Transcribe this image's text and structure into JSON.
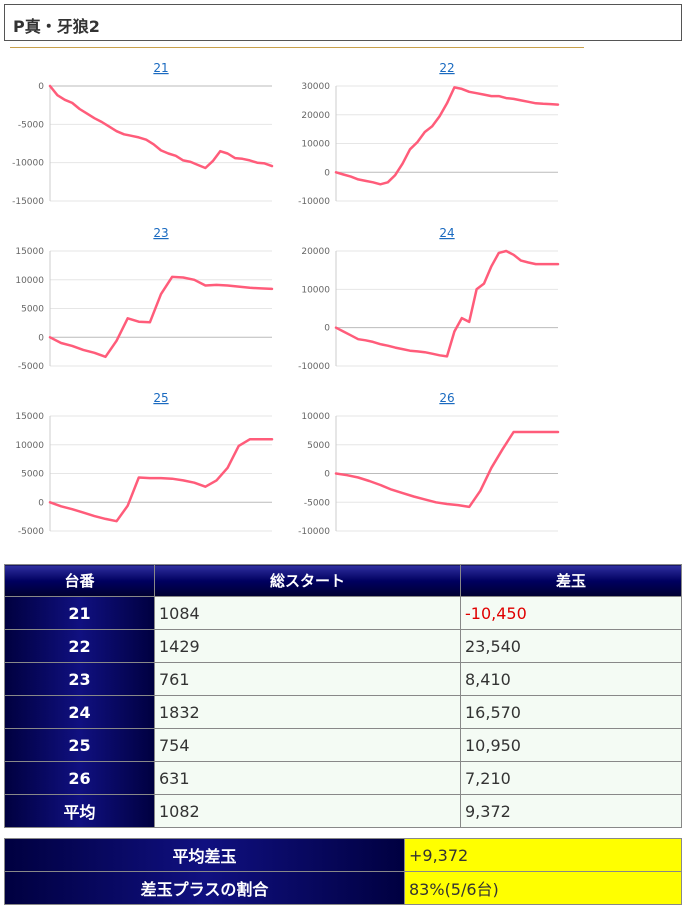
{
  "page": {
    "title": "P真・牙狼2"
  },
  "chart_data": [
    {
      "type": "line",
      "title": "21",
      "yticks": [
        0,
        -5000,
        -10000,
        -15000
      ],
      "ylim": [
        -15000,
        0
      ],
      "x": [
        0,
        1,
        2,
        3,
        4,
        5,
        6,
        7,
        8,
        9,
        10,
        11,
        12,
        13,
        14,
        15,
        16,
        17,
        18,
        19,
        20,
        21,
        22,
        23,
        24,
        25,
        26,
        27,
        28,
        29,
        30
      ],
      "values": [
        0,
        -1200,
        -1800,
        -2200,
        -3000,
        -3600,
        -4200,
        -4700,
        -5300,
        -5900,
        -6300,
        -6500,
        -6700,
        -7000,
        -7600,
        -8400,
        -8800,
        -9100,
        -9700,
        -9900,
        -10300,
        -10700,
        -9800,
        -8500,
        -8800,
        -9400,
        -9500,
        -9700,
        -10000,
        -10100,
        -10450
      ]
    },
    {
      "type": "line",
      "title": "22",
      "yticks": [
        30000,
        20000,
        10000,
        0,
        -10000
      ],
      "ylim": [
        -10000,
        30000
      ],
      "x": [
        0,
        1,
        2,
        3,
        4,
        5,
        6,
        7,
        8,
        9,
        10,
        11,
        12,
        13,
        14,
        15,
        16,
        17,
        18,
        19,
        20,
        21,
        22,
        23,
        24,
        25,
        26,
        27,
        28,
        29,
        30
      ],
      "values": [
        0,
        -800,
        -1500,
        -2500,
        -3000,
        -3500,
        -4200,
        -3500,
        -1000,
        3000,
        8000,
        10500,
        14000,
        16000,
        19500,
        24000,
        29500,
        29000,
        28000,
        27500,
        27000,
        26500,
        26500,
        25800,
        25500,
        25000,
        24500,
        24000,
        23800,
        23700,
        23540
      ]
    },
    {
      "type": "line",
      "title": "23",
      "yticks": [
        15000,
        10000,
        5000,
        0,
        -5000
      ],
      "ylim": [
        -5000,
        15000
      ],
      "x": [
        0,
        1,
        2,
        3,
        4,
        5,
        6,
        7,
        8,
        9,
        10,
        11,
        12,
        13,
        14,
        15,
        16,
        17,
        18,
        19,
        20
      ],
      "values": [
        0,
        -1000,
        -1500,
        -2200,
        -2700,
        -3400,
        -600,
        3300,
        2700,
        2600,
        7500,
        10500,
        10400,
        10000,
        9000,
        9100,
        9000,
        8800,
        8600,
        8500,
        8410
      ]
    },
    {
      "type": "line",
      "title": "24",
      "yticks": [
        20000,
        10000,
        0,
        -10000
      ],
      "ylim": [
        -10000,
        20000
      ],
      "x": [
        0,
        1,
        2,
        3,
        4,
        5,
        6,
        7,
        8,
        9,
        10,
        11,
        12,
        13,
        14,
        15,
        16,
        17,
        18,
        19,
        20,
        21,
        22,
        23,
        24,
        25,
        26,
        27,
        28,
        29,
        30
      ],
      "values": [
        0,
        -1000,
        -2000,
        -3000,
        -3300,
        -3700,
        -4300,
        -4700,
        -5200,
        -5600,
        -6000,
        -6200,
        -6400,
        -6800,
        -7200,
        -7500,
        -1000,
        2500,
        1500,
        10000,
        11500,
        16000,
        19500,
        20000,
        19000,
        17500,
        17000,
        16570,
        16570,
        16570,
        16570
      ]
    },
    {
      "type": "line",
      "title": "25",
      "yticks": [
        15000,
        10000,
        5000,
        0,
        -5000
      ],
      "ylim": [
        -5000,
        15000
      ],
      "x": [
        0,
        1,
        2,
        3,
        4,
        5,
        6,
        7,
        8,
        9,
        10,
        11,
        12,
        13,
        14,
        15,
        16,
        17,
        18,
        19,
        20
      ],
      "values": [
        0,
        -700,
        -1200,
        -1800,
        -2400,
        -2900,
        -3300,
        -600,
        4300,
        4200,
        4200,
        4100,
        3800,
        3400,
        2700,
        3800,
        6000,
        9800,
        10950,
        10950,
        10950
      ]
    },
    {
      "type": "line",
      "title": "26",
      "yticks": [
        10000,
        5000,
        0,
        -5000,
        -10000
      ],
      "ylim": [
        -10000,
        10000
      ],
      "x": [
        0,
        1,
        2,
        3,
        4,
        5,
        6,
        7,
        8,
        9,
        10,
        11,
        12,
        13,
        14,
        15,
        16,
        17,
        18,
        19,
        20
      ],
      "values": [
        0,
        -300,
        -700,
        -1300,
        -2000,
        -2800,
        -3400,
        -4000,
        -4500,
        -5000,
        -5300,
        -5500,
        -5800,
        -3000,
        1000,
        4200,
        7210,
        7210,
        7210,
        7210,
        7210
      ]
    }
  ],
  "table": {
    "headers": [
      "台番",
      "総スタート",
      "差玉"
    ],
    "rows": [
      {
        "id": "21",
        "start": "1084",
        "diff": "-10,450",
        "neg": true
      },
      {
        "id": "22",
        "start": "1429",
        "diff": "23,540",
        "neg": false
      },
      {
        "id": "23",
        "start": "761",
        "diff": "8,410",
        "neg": false
      },
      {
        "id": "24",
        "start": "1832",
        "diff": "16,570",
        "neg": false
      },
      {
        "id": "25",
        "start": "754",
        "diff": "10,950",
        "neg": false
      },
      {
        "id": "26",
        "start": "631",
        "diff": "7,210",
        "neg": false
      }
    ],
    "avg_row": {
      "label": "平均",
      "start": "1082",
      "diff": "9,372"
    }
  },
  "summary": {
    "avg_label": "平均差玉",
    "avg_value": "+9,372",
    "ratio_label": "差玉プラスの割合",
    "ratio_value": "83%(5/6台)"
  },
  "colors": {
    "line": "#ff5c7a",
    "link": "#1a6ac0",
    "negative": "#e00000",
    "highlight": "#ffff00"
  }
}
